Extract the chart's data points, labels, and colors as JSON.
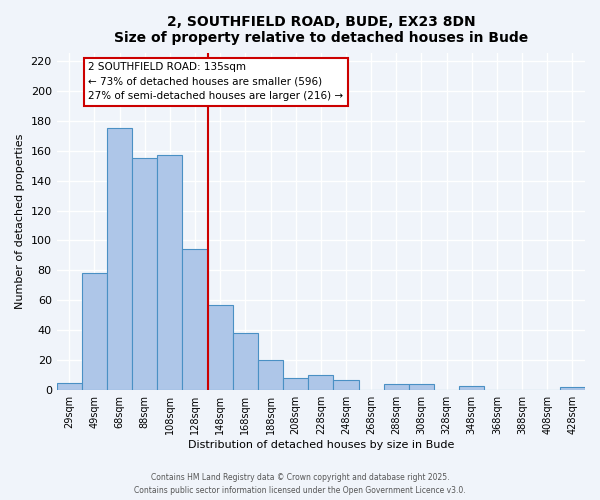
{
  "title": "2, SOUTHFIELD ROAD, BUDE, EX23 8DN",
  "subtitle": "Size of property relative to detached houses in Bude",
  "xlabel": "Distribution of detached houses by size in Bude",
  "ylabel": "Number of detached properties",
  "bar_labels": [
    "29sqm",
    "49sqm",
    "68sqm",
    "88sqm",
    "108sqm",
    "128sqm",
    "148sqm",
    "168sqm",
    "188sqm",
    "208sqm",
    "228sqm",
    "248sqm",
    "268sqm",
    "288sqm",
    "308sqm",
    "328sqm",
    "348sqm",
    "368sqm",
    "388sqm",
    "408sqm",
    "428sqm"
  ],
  "bar_values": [
    5,
    78,
    175,
    155,
    157,
    94,
    57,
    38,
    20,
    8,
    10,
    7,
    0,
    4,
    4,
    0,
    3,
    0,
    0,
    0,
    2
  ],
  "bar_color": "#aec6e8",
  "bar_edge_color": "#4a90c4",
  "vline_x_index": 5,
  "vline_color": "#cc0000",
  "annotation_title": "2 SOUTHFIELD ROAD: 135sqm",
  "annotation_line1": "← 73% of detached houses are smaller (596)",
  "annotation_line2": "27% of semi-detached houses are larger (216) →",
  "annotation_box_color": "#ffffff",
  "annotation_box_edge": "#cc0000",
  "ylim": [
    0,
    225
  ],
  "yticks": [
    0,
    20,
    40,
    60,
    80,
    100,
    120,
    140,
    160,
    180,
    200,
    220
  ],
  "footer1": "Contains HM Land Registry data © Crown copyright and database right 2025.",
  "footer2": "Contains public sector information licensed under the Open Government Licence v3.0.",
  "bg_color": "#f0f4fa",
  "grid_color": "#ffffff"
}
